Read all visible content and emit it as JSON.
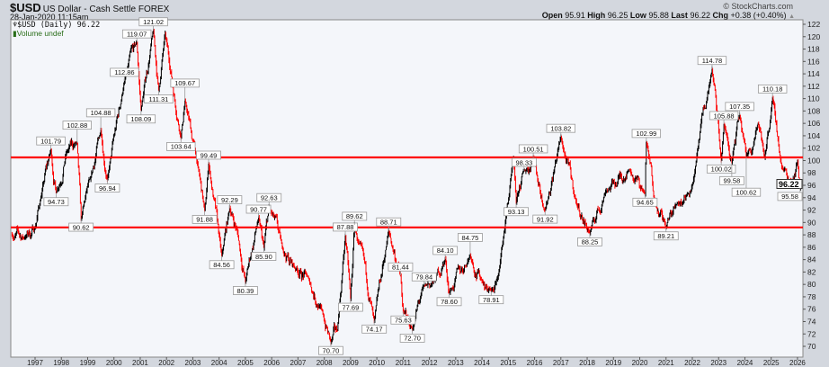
{
  "header": {
    "symbol": "$USD",
    "name": "US Dollar - Cash Settle FOREX",
    "date": "28-Jan-2020 11:15am",
    "brand": "© StockCharts.com",
    "open_label": "Open",
    "open": "95.91",
    "high_label": "High",
    "high": "96.25",
    "low_label": "Low",
    "low": "95.88",
    "last_label": "Last",
    "last": "96.22",
    "chg_label": "Chg",
    "chg": "+0.38 (+0.40%)"
  },
  "legend": {
    "series": "$USD (Daily) 96.22",
    "volume": "Volume undef"
  },
  "chart_data": {
    "type": "line",
    "style": "daily price bars (black up / red down)",
    "ylim": [
      69,
      123
    ],
    "yticks": [
      70,
      72,
      74,
      76,
      78,
      80,
      82,
      84,
      86,
      88,
      90,
      92,
      94,
      96,
      98,
      100,
      102,
      104,
      106,
      108,
      110,
      112,
      114,
      116,
      118,
      120,
      122
    ],
    "xlim": [
      1996.1,
      2026.2
    ],
    "xticks": [
      "1997",
      "1998",
      "1999",
      "2000",
      "2001",
      "2002",
      "2003",
      "2004",
      "2005",
      "2006",
      "2007",
      "2008",
      "2009",
      "2010",
      "2011",
      "2012",
      "2013",
      "2014",
      "2015",
      "2016",
      "2017",
      "2018",
      "2019",
      "2020",
      "2021",
      "2022",
      "2023",
      "2024",
      "2025",
      "2026"
    ],
    "last_value": "96.22",
    "horizontal_lines": [
      100.5,
      89.2
    ],
    "colors": {
      "up": "#000000",
      "down": "#ff0000",
      "hline": "#ff0000",
      "background": "#f4f6fa"
    },
    "path": [
      [
        1996.1,
        88.0
      ],
      [
        1996.6,
        87.5
      ],
      [
        1997.0,
        89.0
      ],
      [
        1997.2,
        93.5
      ],
      [
        1997.6,
        101.79
      ],
      [
        1997.8,
        94.73
      ],
      [
        1998.2,
        101.5
      ],
      [
        1998.6,
        102.88
      ],
      [
        1998.75,
        90.62
      ],
      [
        1999.1,
        97.0
      ],
      [
        1999.5,
        104.88
      ],
      [
        1999.75,
        96.94
      ],
      [
        2000.4,
        112.86
      ],
      [
        2000.87,
        119.07
      ],
      [
        2001.03,
        108.09
      ],
      [
        2001.5,
        121.02
      ],
      [
        2001.7,
        111.31
      ],
      [
        2001.95,
        120.5
      ],
      [
        2002.55,
        103.64
      ],
      [
        2002.7,
        109.67
      ],
      [
        2003.2,
        99.0
      ],
      [
        2003.45,
        91.88
      ],
      [
        2003.6,
        99.49
      ],
      [
        2004.1,
        84.56
      ],
      [
        2004.4,
        92.29
      ],
      [
        2004.7,
        88.5
      ],
      [
        2005.0,
        80.39
      ],
      [
        2005.5,
        90.77
      ],
      [
        2005.7,
        85.9
      ],
      [
        2005.9,
        92.63
      ],
      [
        2006.4,
        86.0
      ],
      [
        2006.9,
        82.5
      ],
      [
        2007.4,
        81.0
      ],
      [
        2007.9,
        76.0
      ],
      [
        2008.25,
        70.7
      ],
      [
        2008.5,
        72.5
      ],
      [
        2008.8,
        87.88
      ],
      [
        2009.0,
        77.69
      ],
      [
        2009.15,
        89.62
      ],
      [
        2009.9,
        74.17
      ],
      [
        2010.45,
        88.71
      ],
      [
        2010.9,
        81.44
      ],
      [
        2011.0,
        75.63
      ],
      [
        2011.35,
        72.7
      ],
      [
        2011.8,
        79.84
      ],
      [
        2012.2,
        80.5
      ],
      [
        2012.6,
        84.1
      ],
      [
        2012.75,
        78.6
      ],
      [
        2013.55,
        84.75
      ],
      [
        2014.0,
        80.5
      ],
      [
        2014.35,
        78.91
      ],
      [
        2014.6,
        81.0
      ],
      [
        2015.2,
        100.3
      ],
      [
        2015.3,
        93.13
      ],
      [
        2015.6,
        98.33
      ],
      [
        2015.95,
        100.51
      ],
      [
        2016.4,
        91.92
      ],
      [
        2017.0,
        103.82
      ],
      [
        2017.6,
        93.0
      ],
      [
        2018.1,
        88.25
      ],
      [
        2018.7,
        95.0
      ],
      [
        2019.6,
        98.5
      ],
      [
        2020.2,
        94.65
      ],
      [
        2020.25,
        102.99
      ],
      [
        2020.6,
        93.0
      ],
      [
        2021.0,
        89.21
      ],
      [
        2021.4,
        93.0
      ],
      [
        2022.0,
        96.0
      ],
      [
        2022.75,
        114.78
      ],
      [
        2023.1,
        100.02
      ],
      [
        2023.2,
        105.88
      ],
      [
        2023.5,
        99.58
      ],
      [
        2023.8,
        107.35
      ],
      [
        2024.05,
        100.62
      ],
      [
        2024.5,
        106.0
      ],
      [
        2024.75,
        100.5
      ],
      [
        2025.05,
        110.18
      ],
      [
        2025.4,
        99.0
      ],
      [
        2025.7,
        96.5
      ],
      [
        2026.0,
        99.8
      ],
      [
        2026.1,
        95.58
      ],
      [
        2026.15,
        96.22
      ]
    ],
    "annotations": [
      {
        "label": "101.79",
        "x": 1997.6,
        "y": 101.79,
        "pos": "above"
      },
      {
        "label": "94.73",
        "x": 1997.8,
        "y": 94.73,
        "pos": "below"
      },
      {
        "label": "102.88",
        "x": 1998.6,
        "y": 102.88,
        "pos": "above"
      },
      {
        "label": "90.62",
        "x": 1998.75,
        "y": 90.62,
        "pos": "below"
      },
      {
        "label": "104.88",
        "x": 1999.5,
        "y": 104.88,
        "pos": "above"
      },
      {
        "label": "96.94",
        "x": 1999.75,
        "y": 96.94,
        "pos": "below"
      },
      {
        "label": "112.86",
        "x": 2000.4,
        "y": 112.86,
        "pos": "above"
      },
      {
        "label": "119.07",
        "x": 2000.87,
        "y": 119.07,
        "pos": "above"
      },
      {
        "label": "108.09",
        "x": 2001.03,
        "y": 108.09,
        "pos": "below"
      },
      {
        "label": "121.02",
        "x": 2001.5,
        "y": 121.02,
        "pos": "above"
      },
      {
        "label": "111.31",
        "x": 2001.7,
        "y": 111.31,
        "pos": "below"
      },
      {
        "label": "103.64",
        "x": 2002.55,
        "y": 103.64,
        "pos": "below"
      },
      {
        "label": "109.67",
        "x": 2002.7,
        "y": 109.67,
        "pos": "above"
      },
      {
        "label": "91.88",
        "x": 2003.45,
        "y": 91.88,
        "pos": "below"
      },
      {
        "label": "99.49",
        "x": 2003.6,
        "y": 99.49,
        "pos": "above"
      },
      {
        "label": "84.56",
        "x": 2004.1,
        "y": 84.56,
        "pos": "below"
      },
      {
        "label": "92.29",
        "x": 2004.4,
        "y": 92.29,
        "pos": "above"
      },
      {
        "label": "80.39",
        "x": 2005.0,
        "y": 80.39,
        "pos": "below"
      },
      {
        "label": "90.77",
        "x": 2005.5,
        "y": 90.77,
        "pos": "above"
      },
      {
        "label": "85.90",
        "x": 2005.7,
        "y": 85.9,
        "pos": "below"
      },
      {
        "label": "92.63",
        "x": 2005.9,
        "y": 92.63,
        "pos": "above"
      },
      {
        "label": "70.70",
        "x": 2008.25,
        "y": 70.7,
        "pos": "below"
      },
      {
        "label": "87.88",
        "x": 2008.8,
        "y": 87.88,
        "pos": "above"
      },
      {
        "label": "77.69",
        "x": 2009.0,
        "y": 77.69,
        "pos": "below"
      },
      {
        "label": "89.62",
        "x": 2009.15,
        "y": 89.62,
        "pos": "above"
      },
      {
        "label": "74.17",
        "x": 2009.9,
        "y": 74.17,
        "pos": "below"
      },
      {
        "label": "88.71",
        "x": 2010.45,
        "y": 88.71,
        "pos": "above"
      },
      {
        "label": "81.44",
        "x": 2010.9,
        "y": 81.44,
        "pos": "above"
      },
      {
        "label": "75.63",
        "x": 2011.0,
        "y": 75.63,
        "pos": "below"
      },
      {
        "label": "72.70",
        "x": 2011.35,
        "y": 72.7,
        "pos": "below"
      },
      {
        "label": "79.84",
        "x": 2011.8,
        "y": 79.84,
        "pos": "above"
      },
      {
        "label": "84.10",
        "x": 2012.6,
        "y": 84.1,
        "pos": "above"
      },
      {
        "label": "78.60",
        "x": 2012.75,
        "y": 78.6,
        "pos": "below"
      },
      {
        "label": "84.75",
        "x": 2013.55,
        "y": 84.75,
        "pos": "above"
      },
      {
        "label": "78.91",
        "x": 2014.35,
        "y": 78.91,
        "pos": "below"
      },
      {
        "label": "93.13",
        "x": 2015.3,
        "y": 93.13,
        "pos": "below"
      },
      {
        "label": "98.33",
        "x": 2015.6,
        "y": 98.33,
        "pos": "above"
      },
      {
        "label": "100.51",
        "x": 2015.95,
        "y": 100.51,
        "pos": "above"
      },
      {
        "label": "91.92",
        "x": 2016.4,
        "y": 91.92,
        "pos": "below"
      },
      {
        "label": "103.82",
        "x": 2017.0,
        "y": 103.82,
        "pos": "above"
      },
      {
        "label": "88.25",
        "x": 2018.1,
        "y": 88.25,
        "pos": "below"
      },
      {
        "label": "94.65",
        "x": 2020.2,
        "y": 94.65,
        "pos": "below"
      },
      {
        "label": "102.99",
        "x": 2020.25,
        "y": 102.99,
        "pos": "above"
      },
      {
        "label": "89.21",
        "x": 2021.0,
        "y": 89.21,
        "pos": "below"
      },
      {
        "label": "114.78",
        "x": 2022.75,
        "y": 114.78,
        "pos": "above"
      },
      {
        "label": "100.02",
        "x": 2023.1,
        "y": 100.02,
        "pos": "below"
      },
      {
        "label": "105.88",
        "x": 2023.2,
        "y": 105.88,
        "pos": "above"
      },
      {
        "label": "99.58",
        "x": 2023.5,
        "y": 99.58,
        "pos": "below"
      },
      {
        "label": "107.35",
        "x": 2023.8,
        "y": 107.35,
        "pos": "above"
      },
      {
        "label": "100.62",
        "x": 2024.05,
        "y": 100.62,
        "pos": "below"
      },
      {
        "label": "110.18",
        "x": 2025.05,
        "y": 110.18,
        "pos": "above"
      },
      {
        "label": "95.58",
        "x": 2026.1,
        "y": 95.58,
        "pos": "below"
      }
    ]
  }
}
